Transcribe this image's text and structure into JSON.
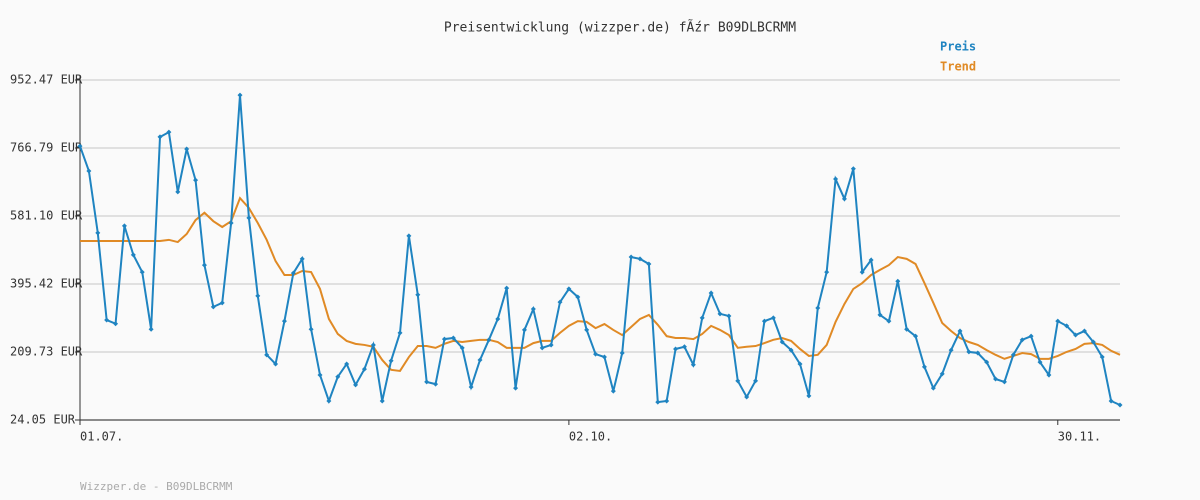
{
  "chart_data": {
    "type": "line",
    "title": "Preisentwicklung (wizzper.de) fÃźr B09DLBCRMM",
    "footer": "Wizzper.de - B09DLBCRMM",
    "legend": "top-right",
    "grid": true,
    "ylim": [
      24.05,
      952.47
    ],
    "yticks": [
      {
        "value": 24.05,
        "label": "24.05 EUR"
      },
      {
        "value": 209.73,
        "label": "209.73 EUR"
      },
      {
        "value": 395.42,
        "label": "395.42 EUR"
      },
      {
        "value": 581.1,
        "label": "581.10 EUR"
      },
      {
        "value": 766.79,
        "label": "766.79 EUR"
      },
      {
        "value": 952.47,
        "label": "952.47 EUR"
      }
    ],
    "categories": [
      "01.07.",
      null,
      null,
      null,
      null,
      null,
      null,
      null,
      null,
      null,
      null,
      null,
      null,
      null,
      null,
      null,
      null,
      null,
      null,
      null,
      null,
      null,
      null,
      null,
      null,
      null,
      null,
      null,
      null,
      null,
      null,
      null,
      null,
      null,
      null,
      null,
      null,
      null,
      null,
      null,
      null,
      null,
      null,
      null,
      null,
      null,
      null,
      null,
      null,
      null,
      null,
      null,
      null,
      null,
      null,
      "02.10.",
      null,
      null,
      null,
      null,
      null,
      null,
      null,
      null,
      null,
      null,
      null,
      null,
      null,
      null,
      null,
      null,
      null,
      null,
      null,
      null,
      null,
      null,
      null,
      null,
      null,
      null,
      null,
      null,
      null,
      null,
      null,
      null,
      null,
      null,
      null,
      null,
      null,
      null,
      null,
      null,
      null,
      null,
      null,
      null,
      null,
      null,
      null,
      null,
      null,
      null,
      null,
      null,
      null,
      null,
      "30.11.",
      null,
      null,
      null,
      null,
      null,
      null,
      null
    ],
    "series": [
      {
        "name": "Preis",
        "color": "#1f84c1",
        "marker": true,
        "values": [
          772,
          704,
          535,
          297,
          287,
          554,
          475,
          428,
          272,
          797,
          810,
          647,
          764,
          679,
          447,
          333,
          344,
          562,
          911,
          576,
          363,
          202,
          177,
          294,
          425,
          464,
          272,
          147,
          76,
          142,
          177,
          120,
          163,
          229,
          76,
          186,
          262,
          527,
          366,
          128,
          122,
          245,
          248,
          221,
          114,
          188,
          243,
          300,
          384,
          111,
          270,
          327,
          221,
          229,
          346,
          382,
          360,
          270,
          204,
          196,
          103,
          207,
          469,
          464,
          450,
          73,
          76,
          218,
          224,
          175,
          303,
          371,
          314,
          308,
          131,
          87,
          131,
          294,
          303,
          237,
          215,
          177,
          90,
          330,
          428,
          682,
          628,
          710,
          428,
          461,
          311,
          294,
          403,
          272,
          253,
          169,
          111,
          150,
          215,
          267,
          210,
          207,
          182,
          136,
          128,
          202,
          243,
          253,
          182,
          147,
          294,
          281,
          256,
          267,
          237,
          196,
          76,
          65
        ]
      },
      {
        "name": "Trend",
        "color": "#e08a25",
        "marker": false,
        "values": [
          513,
          513,
          513,
          513,
          513,
          513,
          513,
          513,
          513,
          513,
          516,
          510,
          532,
          570,
          590,
          567,
          551,
          567,
          630,
          603,
          562,
          516,
          458,
          420,
          420,
          431,
          428,
          382,
          300,
          259,
          240,
          232,
          229,
          224,
          188,
          161,
          158,
          196,
          226,
          226,
          221,
          232,
          240,
          237,
          240,
          243,
          243,
          237,
          221,
          221,
          221,
          234,
          240,
          240,
          262,
          281,
          294,
          292,
          275,
          286,
          270,
          256,
          278,
          300,
          311,
          284,
          253,
          248,
          248,
          245,
          259,
          281,
          270,
          256,
          221,
          224,
          226,
          234,
          243,
          248,
          240,
          218,
          199,
          202,
          229,
          292,
          341,
          382,
          398,
          420,
          434,
          447,
          469,
          464,
          450,
          398,
          344,
          289,
          267,
          248,
          237,
          229,
          215,
          202,
          191,
          199,
          207,
          204,
          191,
          191,
          199,
          210,
          218,
          232,
          234,
          229,
          213,
          202
        ]
      }
    ]
  }
}
